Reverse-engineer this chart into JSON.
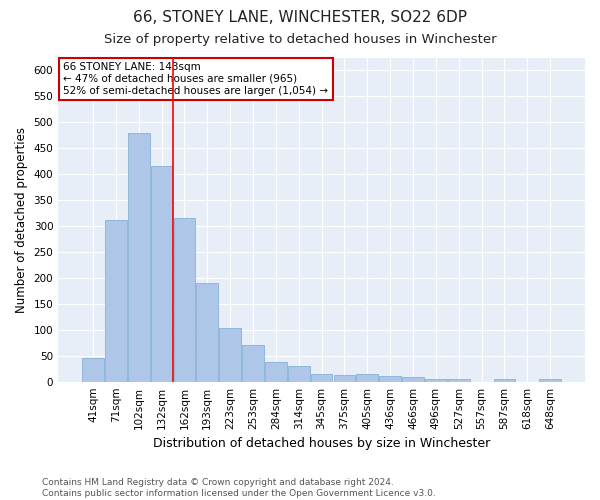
{
  "title": "66, STONEY LANE, WINCHESTER, SO22 6DP",
  "subtitle": "Size of property relative to detached houses in Winchester",
  "xlabel": "Distribution of detached houses by size in Winchester",
  "ylabel": "Number of detached properties",
  "categories": [
    "41sqm",
    "71sqm",
    "102sqm",
    "132sqm",
    "162sqm",
    "193sqm",
    "223sqm",
    "253sqm",
    "284sqm",
    "314sqm",
    "345sqm",
    "375sqm",
    "405sqm",
    "436sqm",
    "466sqm",
    "496sqm",
    "527sqm",
    "557sqm",
    "587sqm",
    "618sqm",
    "648sqm"
  ],
  "values": [
    46,
    311,
    480,
    415,
    315,
    190,
    103,
    70,
    38,
    31,
    15,
    12,
    15,
    11,
    9,
    5,
    5,
    0,
    5,
    0,
    5
  ],
  "bar_color": "#aec6e8",
  "bar_edge_color": "#7aaad0",
  "annotation_text": "66 STONEY LANE: 143sqm\n← 47% of detached houses are smaller (965)\n52% of semi-detached houses are larger (1,054) →",
  "annotation_box_color": "#ffffff",
  "annotation_box_edge_color": "#cc0000",
  "background_color": "#ffffff",
  "plot_bg_color": "#e8eef8",
  "grid_color": "#ffffff",
  "ylim": [
    0,
    625
  ],
  "yticks": [
    0,
    50,
    100,
    150,
    200,
    250,
    300,
    350,
    400,
    450,
    500,
    550,
    600
  ],
  "footer": "Contains HM Land Registry data © Crown copyright and database right 2024.\nContains public sector information licensed under the Open Government Licence v3.0.",
  "title_fontsize": 11,
  "subtitle_fontsize": 9.5,
  "xlabel_fontsize": 9,
  "ylabel_fontsize": 8.5,
  "tick_fontsize": 7.5,
  "annotation_fontsize": 7.5,
  "footer_fontsize": 6.5
}
